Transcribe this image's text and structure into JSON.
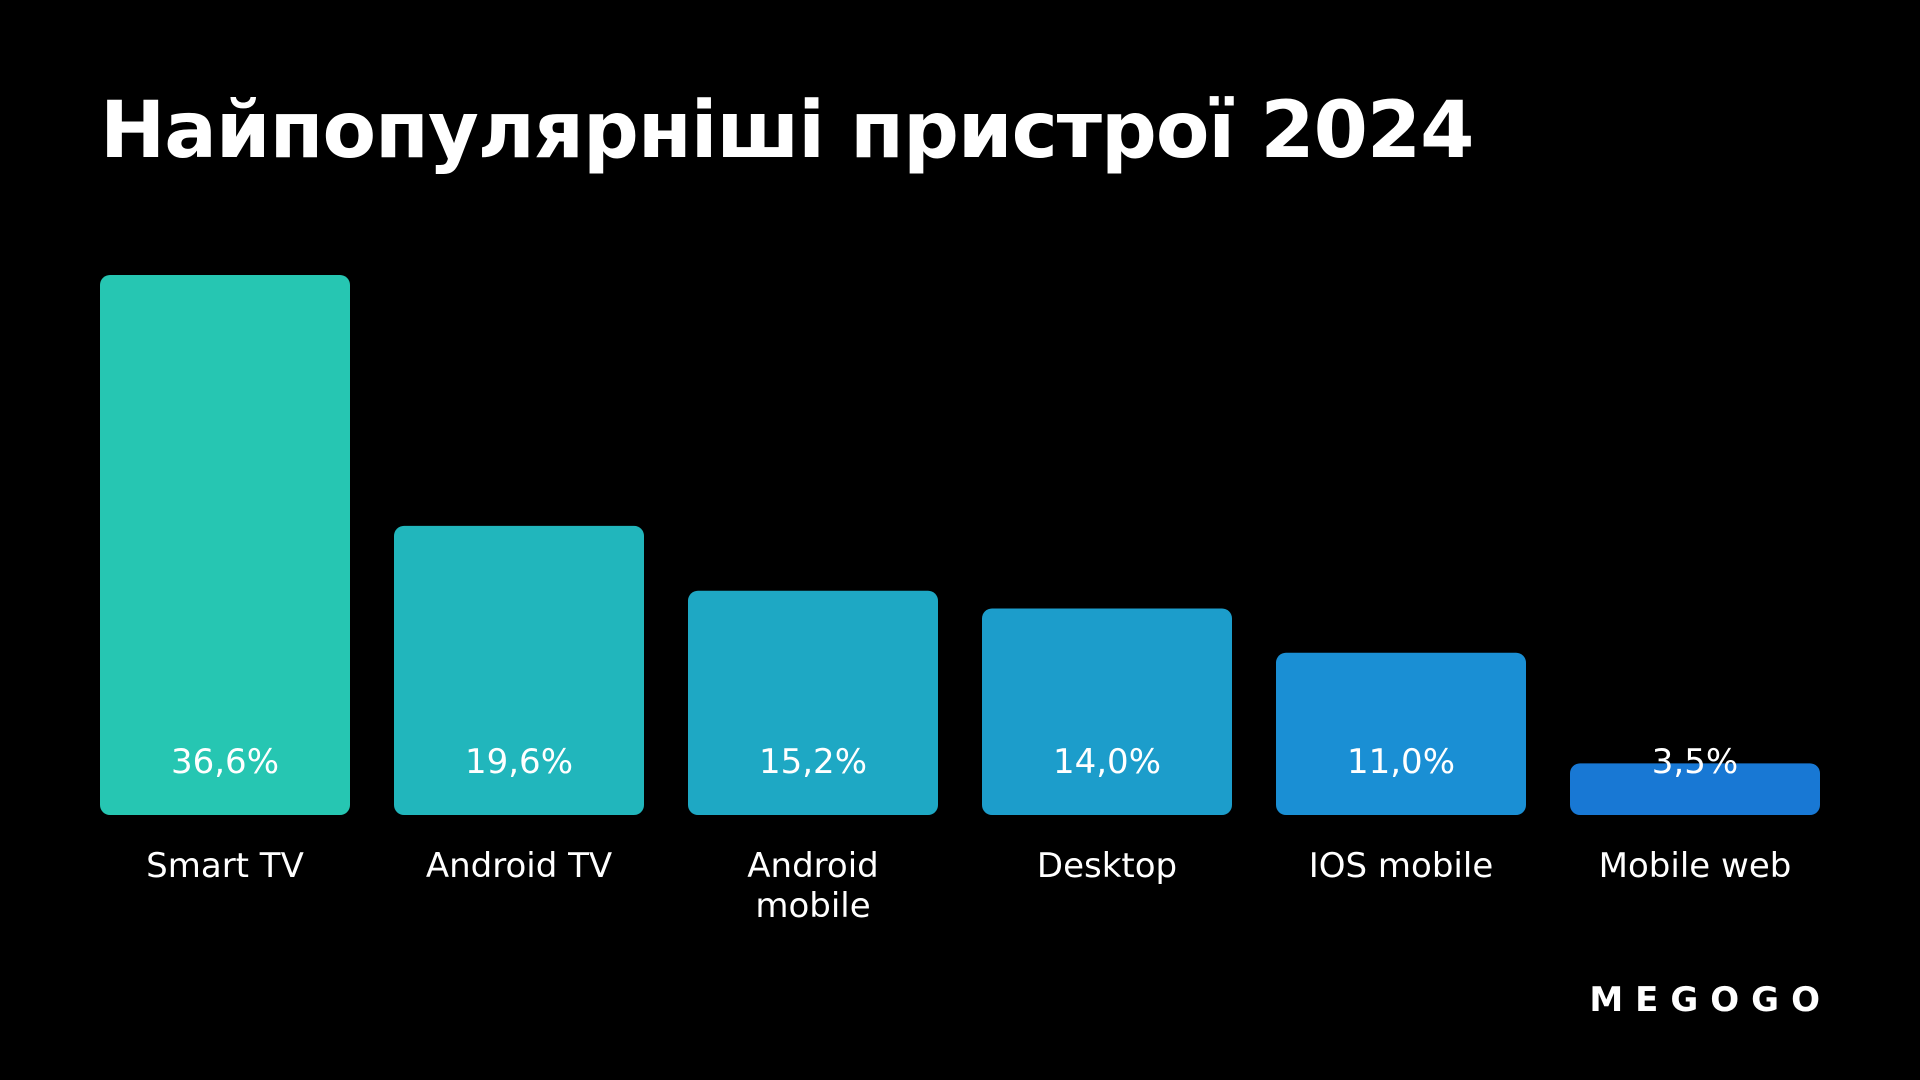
{
  "chart_data": {
    "type": "bar",
    "title": "Найпопулярніші пристрої 2024",
    "categories": [
      "Smart TV",
      "Android TV",
      "Android mobile",
      "Desktop",
      "IOS mobile",
      "Mobile web"
    ],
    "category_lines": [
      [
        "Smart TV"
      ],
      [
        "Android TV"
      ],
      [
        "Android",
        "mobile"
      ],
      [
        "Desktop"
      ],
      [
        "IOS mobile"
      ],
      [
        "Mobile web"
      ]
    ],
    "values": [
      36.6,
      19.6,
      15.2,
      14.0,
      11.0,
      3.5
    ],
    "value_labels": [
      "36,6%",
      "19,6%",
      "15,2%",
      "14,0%",
      "11,0%",
      "3,5%"
    ],
    "unit": "%",
    "ylim": [
      0,
      36.6
    ],
    "grid": false,
    "legend": "none",
    "bar_colors": [
      "#26C6B2",
      "#21B6BC",
      "#1EA8C4",
      "#1C9DCB",
      "#1A8FD4",
      "#1878D4"
    ],
    "background": "#000000"
  },
  "brand": {
    "logo_text": "MEGOGO"
  }
}
